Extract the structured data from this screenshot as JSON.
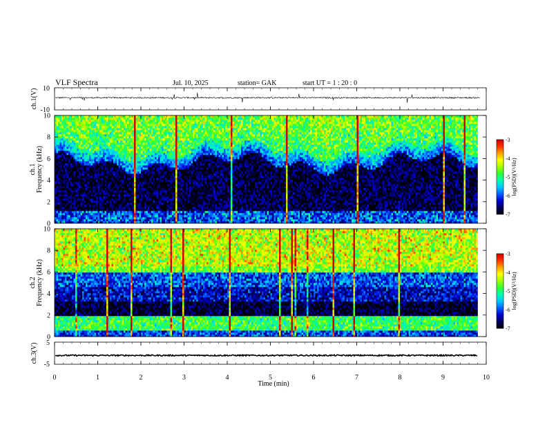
{
  "header": {
    "title": "VLF  Spectra",
    "date": "Jul.  10,  2025",
    "station": "station= GAK",
    "start": "start  UT  =   1  : 20 : 0"
  },
  "chart_data": [
    {
      "id": "ch1-waveform",
      "type": "line",
      "ylabel": "ch.1(V)",
      "ylim": [
        -10,
        10
      ],
      "yticks": [
        "10",
        "-10"
      ],
      "x_range": [
        0,
        10
      ],
      "baseline": 1,
      "color": "#000000"
    },
    {
      "id": "ch1-spectrogram",
      "type": "heatmap",
      "ylabel_top": "ch.1",
      "ylabel": "Frequency  (kHz)",
      "ylim": [
        0,
        10
      ],
      "yticks": [
        "0",
        "2",
        "4",
        "6",
        "8",
        "10"
      ],
      "x_range": [
        0,
        9.8
      ],
      "colorbar": {
        "label": "log(PSD)(V²/Hz)",
        "range": [
          -7,
          -3
        ],
        "ticks": [
          "-3",
          "-4",
          "-5",
          "-6",
          "-7"
        ]
      }
    },
    {
      "id": "ch2-spectrogram",
      "type": "heatmap",
      "ylabel_top": "ch.2",
      "ylabel": "Frequency  (kHz)",
      "ylim": [
        0,
        10
      ],
      "yticks": [
        "0",
        "2",
        "4",
        "6",
        "8",
        "10"
      ],
      "x_range": [
        0,
        9.8
      ],
      "colorbar": {
        "label": "log(PSD)(V²/Hz)",
        "range": [
          -7,
          -3
        ],
        "ticks": [
          "-3",
          "-4",
          "-5",
          "-6",
          "-7"
        ]
      }
    },
    {
      "id": "ch3-waveform",
      "type": "line",
      "ylabel": "ch.3(V)",
      "ylim": [
        -5,
        5
      ],
      "yticks": [
        "5",
        "-5"
      ],
      "x_range": [
        0,
        9.8
      ],
      "baseline": -1,
      "color": "#000000"
    }
  ],
  "xaxis": {
    "label": "Time  (min)",
    "ticks": [
      "0",
      "1",
      "2",
      "3",
      "4",
      "5",
      "6",
      "7",
      "8",
      "9",
      "10"
    ],
    "range": [
      0,
      10
    ]
  },
  "colors": {
    "colormap": [
      "#000000",
      "#000060",
      "#0000d0",
      "#0060ff",
      "#00c8ff",
      "#00ffb0",
      "#30ff30",
      "#a0ff00",
      "#ffff00",
      "#ffa000",
      "#ff3000",
      "#d00000"
    ]
  }
}
